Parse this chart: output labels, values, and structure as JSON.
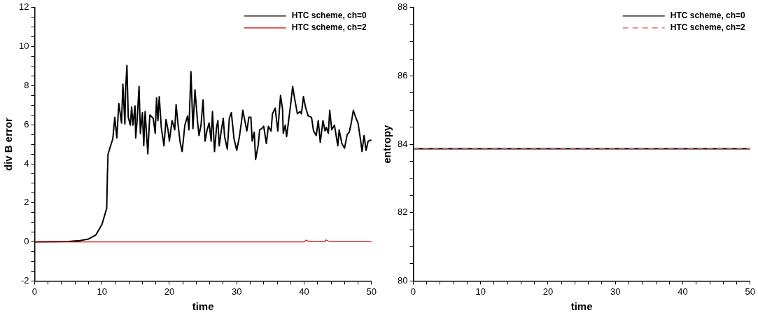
{
  "chart_data": [
    {
      "type": "line",
      "xlabel": "time",
      "ylabel": "div B error",
      "xlim": [
        0,
        50
      ],
      "ylim": [
        -2,
        12
      ],
      "xticks": [
        0,
        {
          "value": 2,
          "label": null
        },
        {
          "value": 4,
          "label": null
        },
        {
          "value": 6,
          "label": null
        },
        {
          "value": 8,
          "label": null
        },
        10,
        {
          "value": 12,
          "label": null
        },
        {
          "value": 14,
          "label": null
        },
        {
          "value": 16,
          "label": null
        },
        {
          "value": 18,
          "label": null
        },
        20,
        {
          "value": 22,
          "label": null
        },
        {
          "value": 24,
          "label": null
        },
        {
          "value": 26,
          "label": null
        },
        {
          "value": 28,
          "label": null
        },
        30,
        {
          "value": 32,
          "label": null
        },
        {
          "value": 34,
          "label": null
        },
        {
          "value": 36,
          "label": null
        },
        {
          "value": 38,
          "label": null
        },
        40,
        {
          "value": 42,
          "label": null
        },
        {
          "value": 44,
          "label": null
        },
        {
          "value": 46,
          "label": null
        },
        {
          "value": 48,
          "label": null
        },
        50
      ],
      "yticks": [
        -2,
        {
          "value": -1.5,
          "label": null
        },
        {
          "value": -1,
          "label": null
        },
        {
          "value": -0.5,
          "label": null
        },
        0,
        {
          "value": 0.5,
          "label": null
        },
        {
          "value": 1,
          "label": null
        },
        {
          "value": 1.5,
          "label": null
        },
        2,
        {
          "value": 2.5,
          "label": null
        },
        {
          "value": 3,
          "label": null
        },
        {
          "value": 3.5,
          "label": null
        },
        4,
        {
          "value": 4.5,
          "label": null
        },
        {
          "value": 5,
          "label": null
        },
        {
          "value": 5.5,
          "label": null
        },
        6,
        {
          "value": 6.5,
          "label": null
        },
        {
          "value": 7,
          "label": null
        },
        {
          "value": 7.5,
          "label": null
        },
        8,
        {
          "value": 8.5,
          "label": null
        },
        {
          "value": 9,
          "label": null
        },
        {
          "value": 9.5,
          "label": null
        },
        10,
        {
          "value": 10.5,
          "label": null
        },
        {
          "value": 11,
          "label": null
        },
        {
          "value": 11.5,
          "label": null
        },
        12
      ],
      "grid": false,
      "legend": "top right",
      "marker": "none",
      "series": [
        {
          "name": "HTC scheme, ch=0",
          "color": "#000000",
          "line_style": "solid",
          "x": [
            0,
            5,
            6.7,
            8,
            9.1,
            10,
            10.7,
            10.8,
            10.9,
            11.6,
            11.9,
            12.2,
            12.5,
            12.9,
            13.1,
            13.4,
            13.5,
            13.7,
            13.9,
            14.2,
            14.4,
            14.6,
            14.9,
            15,
            15.2,
            15.5,
            15.7,
            16,
            16.2,
            16.4,
            16.8,
            17.1,
            17.6,
            17.9,
            18.1,
            18.3,
            18.5,
            18.8,
            19.2,
            19.5,
            19.8,
            20,
            20.4,
            20.8,
            21,
            21.3,
            21.6,
            21.9,
            22.3,
            22.7,
            22.9,
            23.2,
            23.5,
            23.8,
            24.2,
            24.4,
            24.7,
            25,
            25.3,
            25.6,
            25.9,
            26.2,
            26.4,
            26.7,
            27,
            27.2,
            27.4,
            27.7,
            28,
            28.2,
            28.6,
            28.9,
            29.2,
            29.6,
            30,
            30.4,
            30.7,
            30.9,
            31.2,
            31.5,
            31.8,
            32.1,
            32.3,
            32.6,
            32.8,
            33.2,
            33.4,
            33.7,
            34,
            34.4,
            34.7,
            35.1,
            35.3,
            35.7,
            36.1,
            36.5,
            36.8,
            36.9,
            37.2,
            37.4,
            37.7,
            38,
            38.3,
            38.6,
            39,
            39.4,
            39.6,
            39.9,
            40.2,
            40.6,
            41.1,
            41.4,
            41.8,
            42.1,
            42.4,
            42.8,
            43.1,
            43.3,
            43.6,
            43.8,
            44.1,
            44.5,
            44.7,
            45,
            45.2,
            45.6,
            46,
            46.4,
            46.7,
            47,
            47.3,
            47.7,
            48,
            48.4,
            48.6,
            48.9,
            49.2,
            49.5,
            49.9,
            50
          ],
          "values": [
            0,
            0.02,
            0.07,
            0.15,
            0.36,
            0.9,
            1.72,
            3.4,
            4.5,
            5.27,
            6.38,
            5.33,
            7.09,
            6.09,
            8.08,
            6.04,
            7.75,
            9.04,
            6.38,
            5.98,
            6.91,
            5.98,
            6.97,
            5.33,
            6.15,
            7.96,
            5.56,
            6.62,
            4.92,
            6.68,
            4.51,
            6.5,
            6.33,
            5.56,
            7.38,
            6.21,
            7.44,
            5.86,
            4.92,
            6.27,
            5.74,
            5.16,
            6.21,
            5.74,
            7.03,
            5.98,
            5.1,
            4.63,
            5.98,
            6.45,
            5.74,
            8.72,
            5.8,
            7.79,
            6.09,
            5.45,
            5.98,
            7.27,
            5.16,
            5.74,
            6.09,
            5.16,
            6.68,
            4.63,
            5.86,
            6.21,
            4.92,
            5.68,
            6.33,
            5.39,
            4.75,
            6.33,
            6.62,
            5.27,
            4.69,
            5.39,
            6.15,
            6.74,
            6.21,
            5.68,
            6.38,
            6.38,
            5.16,
            5.62,
            4.22,
            4.98,
            5.74,
            5.8,
            5.92,
            5.04,
            5.92,
            5.68,
            6.56,
            6.85,
            5.68,
            7.5,
            6.8,
            5.56,
            5.98,
            5.39,
            6.21,
            7.03,
            7.96,
            7.33,
            6.56,
            6.68,
            6.56,
            7.44,
            6.91,
            6.45,
            6.38,
            5.68,
            5.45,
            6.21,
            5.1,
            6.21,
            5.68,
            5.86,
            5.56,
            6.74,
            5.74,
            5.98,
            5.56,
            4.92,
            5.74,
            5.04,
            4.8,
            5.5,
            5.62,
            6.09,
            6.74,
            6.33,
            6.09,
            5.16,
            4.63,
            5.45,
            4.69,
            5.16,
            5.21,
            5.2
          ]
        },
        {
          "name": "HTC scheme, ch=2",
          "color": "#d00000",
          "line_style": "solid",
          "x": [
            0,
            40,
            40.3,
            40.5,
            41,
            43,
            43.3,
            43.6,
            44,
            50
          ],
          "values": [
            0,
            0,
            0.1,
            0.05,
            0.02,
            0.02,
            0.1,
            0.04,
            0.02,
            0.02
          ]
        }
      ]
    },
    {
      "type": "line",
      "xlabel": "time",
      "ylabel": "entropy",
      "xlim": [
        0,
        50
      ],
      "ylim": [
        80,
        88
      ],
      "xticks": [
        0,
        {
          "value": 2,
          "label": null
        },
        {
          "value": 4,
          "label": null
        },
        {
          "value": 6,
          "label": null
        },
        {
          "value": 8,
          "label": null
        },
        10,
        {
          "value": 12,
          "label": null
        },
        {
          "value": 14,
          "label": null
        },
        {
          "value": 16,
          "label": null
        },
        {
          "value": 18,
          "label": null
        },
        20,
        {
          "value": 22,
          "label": null
        },
        {
          "value": 24,
          "label": null
        },
        {
          "value": 26,
          "label": null
        },
        {
          "value": 28,
          "label": null
        },
        30,
        {
          "value": 32,
          "label": null
        },
        {
          "value": 34,
          "label": null
        },
        {
          "value": 36,
          "label": null
        },
        {
          "value": 38,
          "label": null
        },
        40,
        {
          "value": 42,
          "label": null
        },
        {
          "value": 44,
          "label": null
        },
        {
          "value": 46,
          "label": null
        },
        {
          "value": 48,
          "label": null
        },
        50
      ],
      "yticks": [
        80,
        {
          "value": 80.5,
          "label": null
        },
        {
          "value": 81,
          "label": null
        },
        {
          "value": 81.5,
          "label": null
        },
        82,
        {
          "value": 82.5,
          "label": null
        },
        {
          "value": 83,
          "label": null
        },
        {
          "value": 83.5,
          "label": null
        },
        84,
        {
          "value": 84.5,
          "label": null
        },
        {
          "value": 85,
          "label": null
        },
        {
          "value": 85.5,
          "label": null
        },
        86,
        {
          "value": 86.5,
          "label": null
        },
        {
          "value": 87,
          "label": null
        },
        {
          "value": 87.5,
          "label": null
        },
        88
      ],
      "grid": false,
      "legend": "top right",
      "marker": "none",
      "series": [
        {
          "name": "HTC scheme, ch=0",
          "color": "#000000",
          "line_style": "solid",
          "x": [
            0,
            50
          ],
          "values": [
            83.87,
            83.87
          ]
        },
        {
          "name": "HTC scheme, ch=2",
          "color": "#e85050",
          "line_style": "dashed",
          "x": [
            0,
            50
          ],
          "values": [
            83.87,
            83.87
          ]
        }
      ]
    }
  ]
}
